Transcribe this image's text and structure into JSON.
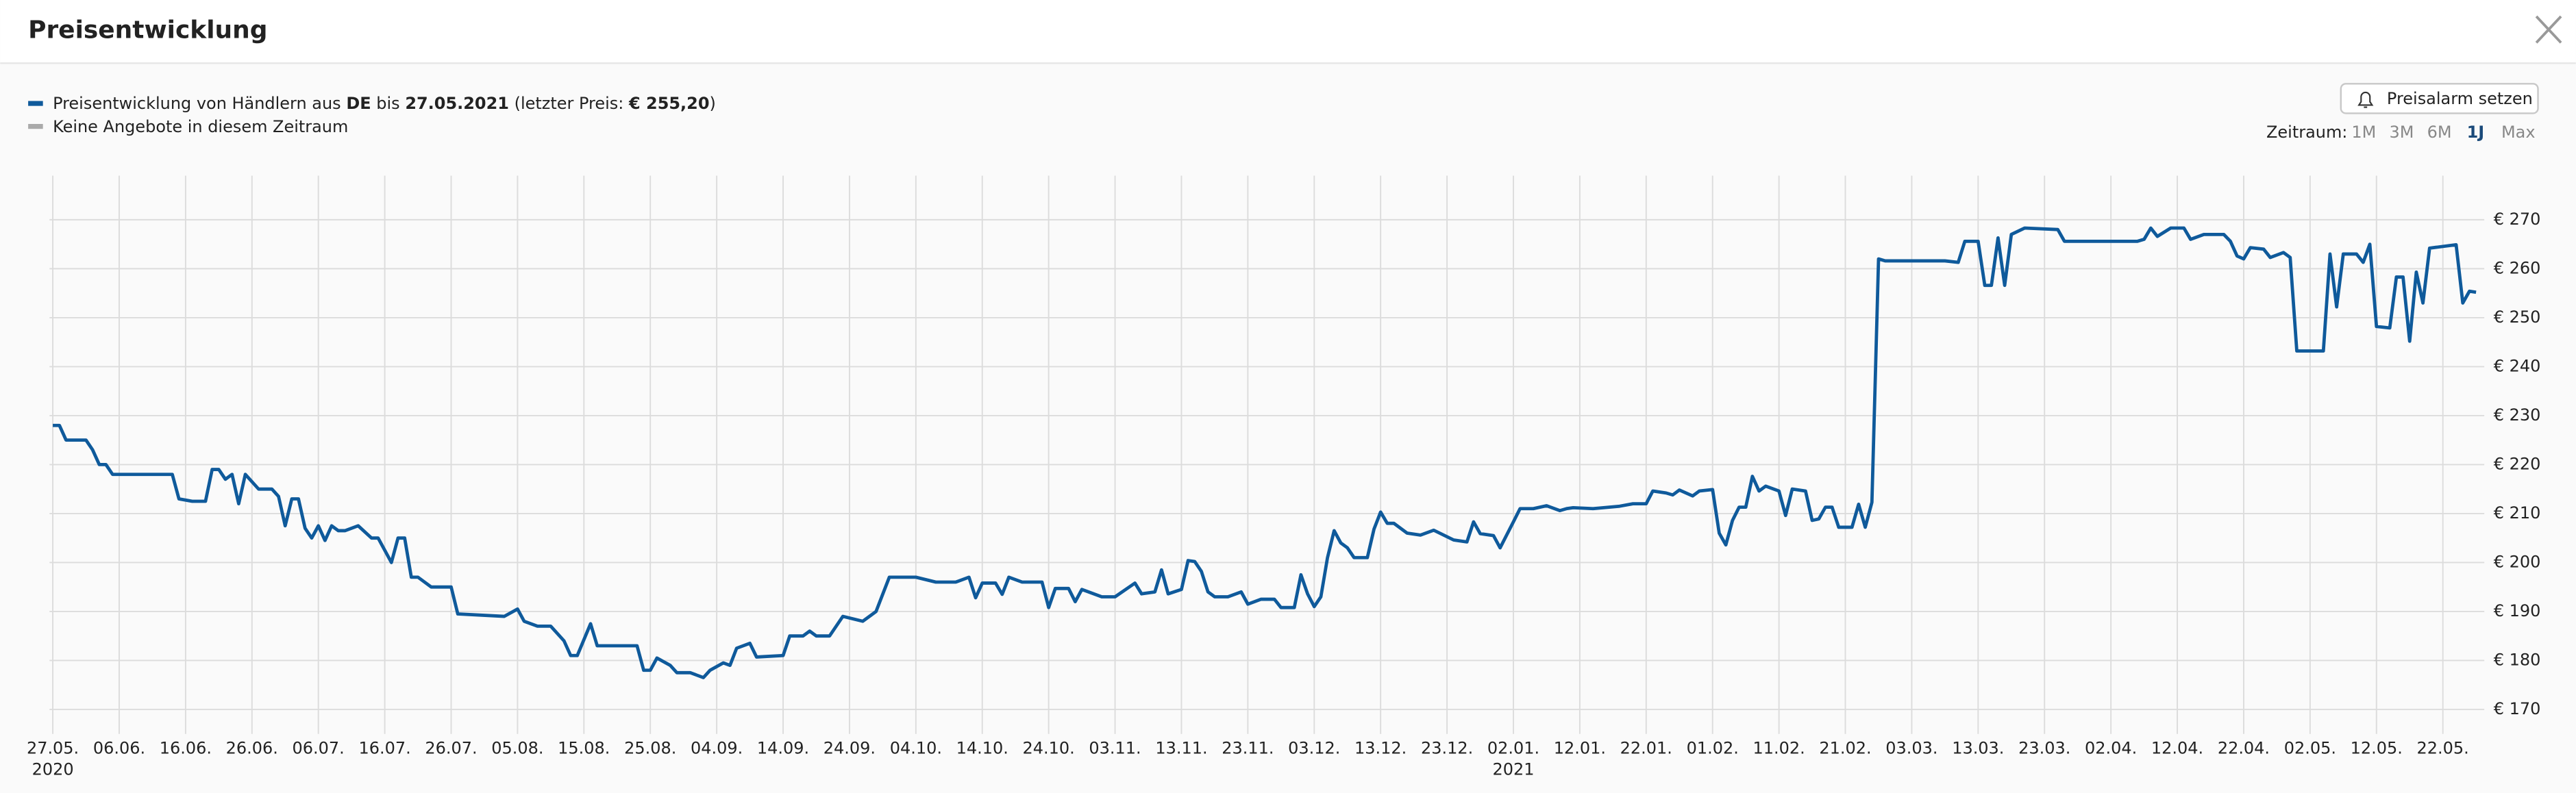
{
  "header": {
    "title": "Preisentwicklung"
  },
  "controls": {
    "alarm_button": "Preisalarm setzen",
    "range_label": "Zeitraum:",
    "ranges": [
      "1M",
      "3M",
      "6M",
      "1J",
      "Max"
    ],
    "active_range_index": 3
  },
  "chart_data": {
    "type": "line",
    "legend_details": [
      {
        "text": "DE",
        "bold": true
      },
      {
        "text": "bis",
        "bold": false
      },
      {
        "text": "27.05.2021",
        "bold": true
      },
      {
        "text": "(letzter Preis:",
        "bold": false
      },
      {
        "text": "€ 255,20",
        "bold": true
      },
      {
        "text": ")",
        "bold": false
      }
    ],
    "gap_legend": {
      "name": "Keine Angebote in diesem Zeitraum",
      "color": "#aaaaaa"
    },
    "xlim": [
      "2020-05-27",
      "2021-05-27"
    ],
    "xticks": [
      {
        "value": "2020-05-27",
        "label": "27.05."
      },
      {
        "value": "2020-06-06",
        "label": "06.06."
      },
      {
        "value": "2020-06-16",
        "label": "16.06."
      },
      {
        "value": "2020-06-26",
        "label": "26.06."
      },
      {
        "value": "2020-07-06",
        "label": "06.07."
      },
      {
        "value": "2020-07-16",
        "label": "16.07."
      },
      {
        "value": "2020-07-26",
        "label": "26.07."
      },
      {
        "value": "2020-08-05",
        "label": "05.08."
      },
      {
        "value": "2020-08-15",
        "label": "15.08."
      },
      {
        "value": "2020-08-25",
        "label": "25.08."
      },
      {
        "value": "2020-09-04",
        "label": "04.09."
      },
      {
        "value": "2020-09-14",
        "label": "14.09."
      },
      {
        "value": "2020-09-24",
        "label": "24.09."
      },
      {
        "value": "2020-10-04",
        "label": "04.10."
      },
      {
        "value": "2020-10-14",
        "label": "14.10."
      },
      {
        "value": "2020-10-24",
        "label": "24.10."
      },
      {
        "value": "2020-11-03",
        "label": "03.11."
      },
      {
        "value": "2020-11-13",
        "label": "13.11."
      },
      {
        "value": "2020-11-23",
        "label": "23.11."
      },
      {
        "value": "2020-12-03",
        "label": "03.12."
      },
      {
        "value": "2020-12-13",
        "label": "13.12."
      },
      {
        "value": "2020-12-23",
        "label": "23.12."
      },
      {
        "value": "2021-01-02",
        "label": "02.01."
      },
      {
        "value": "2021-01-12",
        "label": "12.01."
      },
      {
        "value": "2021-01-22",
        "label": "22.01."
      },
      {
        "value": "2021-02-01",
        "label": "01.02."
      },
      {
        "value": "2021-02-11",
        "label": "11.02."
      },
      {
        "value": "2021-02-21",
        "label": "21.02."
      },
      {
        "value": "2021-03-03",
        "label": "03.03."
      },
      {
        "value": "2021-03-13",
        "label": "13.03."
      },
      {
        "value": "2021-03-23",
        "label": "23.03."
      },
      {
        "value": "2021-04-02",
        "label": "02.04."
      },
      {
        "value": "2021-04-12",
        "label": "12.04."
      },
      {
        "value": "2021-04-22",
        "label": "22.04."
      },
      {
        "value": "2021-05-02",
        "label": "02.05."
      },
      {
        "value": "2021-05-12",
        "label": "12.05."
      },
      {
        "value": "2021-05-22",
        "label": "22.05."
      }
    ],
    "x_year_labels": [
      {
        "value": "2020-05-27",
        "label": "2020"
      },
      {
        "value": "2021-01-02",
        "label": "2021"
      }
    ],
    "ylim": [
      165,
      279
    ],
    "yticks": [
      {
        "value": 170,
        "label": "€ 170"
      },
      {
        "value": 180,
        "label": "€ 180"
      },
      {
        "value": 190,
        "label": "€ 190"
      },
      {
        "value": 200,
        "label": "€ 200"
      },
      {
        "value": 210,
        "label": "€ 210"
      },
      {
        "value": 220,
        "label": "€ 220"
      },
      {
        "value": 230,
        "label": "€ 230"
      },
      {
        "value": 240,
        "label": "€ 240"
      },
      {
        "value": 250,
        "label": "€ 250"
      },
      {
        "value": 260,
        "label": "€ 260"
      },
      {
        "value": 270,
        "label": "€ 270"
      }
    ],
    "grid": true,
    "x": [
      "2020-05-27",
      "2020-05-28",
      "2020-05-29",
      "2020-06-01",
      "2020-06-02",
      "2020-06-03",
      "2020-06-04",
      "2020-06-05",
      "2020-06-14",
      "2020-06-15",
      "2020-06-17",
      "2020-06-19",
      "2020-06-20",
      "2020-06-21",
      "2020-06-22",
      "2020-06-23",
      "2020-06-24",
      "2020-06-25",
      "2020-06-27",
      "2020-06-29",
      "2020-06-30",
      "2020-07-01",
      "2020-07-02",
      "2020-07-03",
      "2020-07-04",
      "2020-07-05",
      "2020-07-06",
      "2020-07-07",
      "2020-07-08",
      "2020-07-09",
      "2020-07-10",
      "2020-07-12",
      "2020-07-14",
      "2020-07-15",
      "2020-07-17",
      "2020-07-18",
      "2020-07-19",
      "2020-07-20",
      "2020-07-21",
      "2020-07-23",
      "2020-07-26",
      "2020-07-27",
      "2020-08-03",
      "2020-08-05",
      "2020-08-06",
      "2020-08-08",
      "2020-08-10",
      "2020-08-12",
      "2020-08-13",
      "2020-08-14",
      "2020-08-16",
      "2020-08-17",
      "2020-08-23",
      "2020-08-24",
      "2020-08-25",
      "2020-08-26",
      "2020-08-28",
      "2020-08-29",
      "2020-08-31",
      "2020-09-02",
      "2020-09-03",
      "2020-09-05",
      "2020-09-06",
      "2020-09-07",
      "2020-09-09",
      "2020-09-10",
      "2020-09-14",
      "2020-09-15",
      "2020-09-17",
      "2020-09-18",
      "2020-09-19",
      "2020-09-21",
      "2020-09-23",
      "2020-09-26",
      "2020-09-28",
      "2020-09-29",
      "2020-09-30",
      "2020-10-02",
      "2020-10-04",
      "2020-10-07",
      "2020-10-10",
      "2020-10-12",
      "2020-10-13",
      "2020-10-14",
      "2020-10-16",
      "2020-10-17",
      "2020-10-18",
      "2020-10-20",
      "2020-10-23",
      "2020-10-24",
      "2020-10-25",
      "2020-10-27",
      "2020-10-28",
      "2020-10-29",
      "2020-11-01",
      "2020-11-03",
      "2020-11-06",
      "2020-11-07",
      "2020-11-09",
      "2020-11-10",
      "2020-11-11",
      "2020-11-13",
      "2020-11-14",
      "2020-11-15",
      "2020-11-16",
      "2020-11-17",
      "2020-11-18",
      "2020-11-20",
      "2020-11-22",
      "2020-11-23",
      "2020-11-25",
      "2020-11-27",
      "2020-11-28",
      "2020-11-30",
      "2020-12-01",
      "2020-12-02",
      "2020-12-03",
      "2020-12-04",
      "2020-12-05",
      "2020-12-06",
      "2020-12-07",
      "2020-12-08",
      "2020-12-09",
      "2020-12-11",
      "2020-12-12",
      "2020-12-13",
      "2020-12-14",
      "2020-12-15",
      "2020-12-17",
      "2020-12-19",
      "2020-12-21",
      "2020-12-24",
      "2020-12-26",
      "2020-12-27",
      "2020-12-28",
      "2020-12-30",
      "2020-12-31",
      "2021-01-02",
      "2021-01-03",
      "2021-01-05",
      "2021-01-07",
      "2021-01-09",
      "2021-01-10",
      "2021-01-11",
      "2021-01-14",
      "2021-01-18",
      "2021-01-20",
      "2021-01-22",
      "2021-01-23",
      "2021-01-25",
      "2021-01-26",
      "2021-01-27",
      "2021-01-29",
      "2021-01-30",
      "2021-02-01",
      "2021-02-02",
      "2021-02-03",
      "2021-02-04",
      "2021-02-05",
      "2021-02-06",
      "2021-02-07",
      "2021-02-08",
      "2021-02-09",
      "2021-02-11",
      "2021-02-12",
      "2021-02-13",
      "2021-02-15",
      "2021-02-16",
      "2021-02-17",
      "2021-02-18",
      "2021-02-19",
      "2021-02-20",
      "2021-02-22",
      "2021-02-23",
      "2021-02-24",
      "2021-02-25",
      "2021-02-26",
      "2021-02-27",
      "2021-03-08",
      "2021-03-10",
      "2021-03-11",
      "2021-03-13",
      "2021-03-14",
      "2021-03-15",
      "2021-03-16",
      "2021-03-17",
      "2021-03-18",
      "2021-03-20",
      "2021-03-25",
      "2021-03-26",
      "2021-04-06",
      "2021-04-07",
      "2021-04-08",
      "2021-04-09",
      "2021-04-11",
      "2021-04-13",
      "2021-04-14",
      "2021-04-16",
      "2021-04-19",
      "2021-04-20",
      "2021-04-21",
      "2021-04-22",
      "2021-04-23",
      "2021-04-25",
      "2021-04-26",
      "2021-04-28",
      "2021-04-29",
      "2021-04-30",
      "2021-05-04",
      "2021-05-05",
      "2021-05-06",
      "2021-05-07",
      "2021-05-09",
      "2021-05-10",
      "2021-05-11",
      "2021-05-12",
      "2021-05-14",
      "2021-05-15",
      "2021-05-16",
      "2021-05-17",
      "2021-05-18",
      "2021-05-19",
      "2021-05-20",
      "2021-05-24",
      "2021-05-25",
      "2021-05-26",
      "2021-05-27"
    ],
    "series": [
      {
        "name": "Preisentwicklung von Händlern aus",
        "color": "#0f5a9b",
        "values": [
          228,
          228,
          225,
          225,
          223,
          220,
          220,
          218,
          218,
          213,
          212.5,
          212.5,
          219,
          219,
          217,
          218,
          212,
          218,
          215,
          215,
          213.5,
          207.5,
          213,
          213,
          207,
          205,
          207.5,
          204.5,
          207.5,
          206.5,
          206.5,
          207.5,
          205,
          205,
          200,
          205,
          205,
          197,
          197,
          195,
          195,
          189.5,
          189,
          190.5,
          188,
          187,
          187,
          184,
          181,
          181,
          187.5,
          183,
          183,
          178,
          178,
          180.5,
          179,
          177.5,
          177.5,
          176.5,
          178,
          179.5,
          179,
          182.5,
          183.5,
          180.7,
          181,
          185,
          185,
          186,
          185,
          185,
          189,
          188,
          190,
          193.5,
          197,
          197,
          197,
          196,
          196,
          197,
          192.8,
          195.8,
          195.8,
          193.5,
          197,
          196,
          196,
          190.8,
          194.7,
          194.7,
          192,
          194.5,
          193,
          193,
          195.8,
          193.6,
          194,
          198.5,
          193.6,
          194.5,
          200.4,
          200.2,
          198.2,
          194,
          193,
          193,
          194,
          191.5,
          192.5,
          192.5,
          190.8,
          190.8,
          197.5,
          193.6,
          191,
          193,
          201,
          206.5,
          204,
          203,
          201,
          201,
          206.8,
          210.3,
          208,
          208,
          206,
          205.6,
          206.6,
          204.6,
          204.2,
          208.3,
          205.9,
          205.5,
          203,
          208.3,
          211,
          211,
          211.6,
          210.6,
          211,
          211.2,
          211,
          211.5,
          212,
          212,
          214.6,
          214.2,
          213.8,
          214.8,
          213.6,
          214.6,
          214.9,
          206,
          203.6,
          208.6,
          211.3,
          211.3,
          217.6,
          214.6,
          215.6,
          214.6,
          209.6,
          215,
          214.6,
          208.6,
          208.9,
          211.3,
          211.3,
          207.2,
          207.2,
          211.9,
          207.2,
          212.3,
          262,
          261.6,
          261.6,
          261.3,
          265.6,
          265.6,
          256.6,
          256.6,
          266.3,
          256.6,
          267,
          268.3,
          268,
          265.6,
          265.6,
          266,
          268.3,
          266.6,
          268.3,
          268.3,
          266,
          267,
          267,
          265.6,
          262.6,
          262,
          264.3,
          264,
          262.3,
          263.3,
          262.3,
          243.2,
          243.2,
          263,
          252.2,
          263,
          263,
          261.3,
          265,
          248.2,
          247.9,
          258.3,
          258.3,
          245.2,
          259.3,
          253,
          264.2,
          264.9,
          253,
          255.4,
          255.2
        ]
      }
    ]
  }
}
